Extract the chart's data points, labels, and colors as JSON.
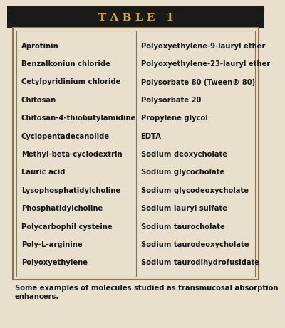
{
  "title": "T A B L E   1",
  "title_bg": "#1a1a1a",
  "title_color": "#c8a850",
  "bg_color": "#e8e0cc",
  "table_border_color": "#8b7355",
  "left_col": [
    "Aprotinin",
    "Benzalkoniun chloride",
    "Cetylpyridinium chloride",
    "Chitosan",
    "Chitosan-4-thiobutylamidine",
    "Cyclopentadecanolide",
    "Methyl-beta-cyclodextrin",
    "Lauric acid",
    "Lysophosphatidylcholine",
    "Phosphatidylcholine",
    "Polycarbophil cysteine",
    "Poly-L-arginine",
    "Polyoxyethylene"
  ],
  "right_col": [
    "Polyoxyethylene-9-lauryl ether",
    "Polyoxyethylene-23-lauryl ether",
    "Polysorbate 80 (Tween® 80)",
    "Polysorbate 20",
    "Propylene glycol",
    "EDTA",
    "Sodium deoxycholate",
    "Sodium glycocholate",
    "Sodium glycodeoxycholate",
    "Sodium lauryl sulfate",
    "Sodium taurocholate",
    "Sodium taurodeoxycholate",
    "Sodium taurodihydrofusidate"
  ],
  "caption": "Some examples of molecules studied as transmucosal absorption\nenhancers.",
  "text_color": "#1a1a1a",
  "font_size": 7.2,
  "caption_font_size": 7.2,
  "title_font_size": 11
}
